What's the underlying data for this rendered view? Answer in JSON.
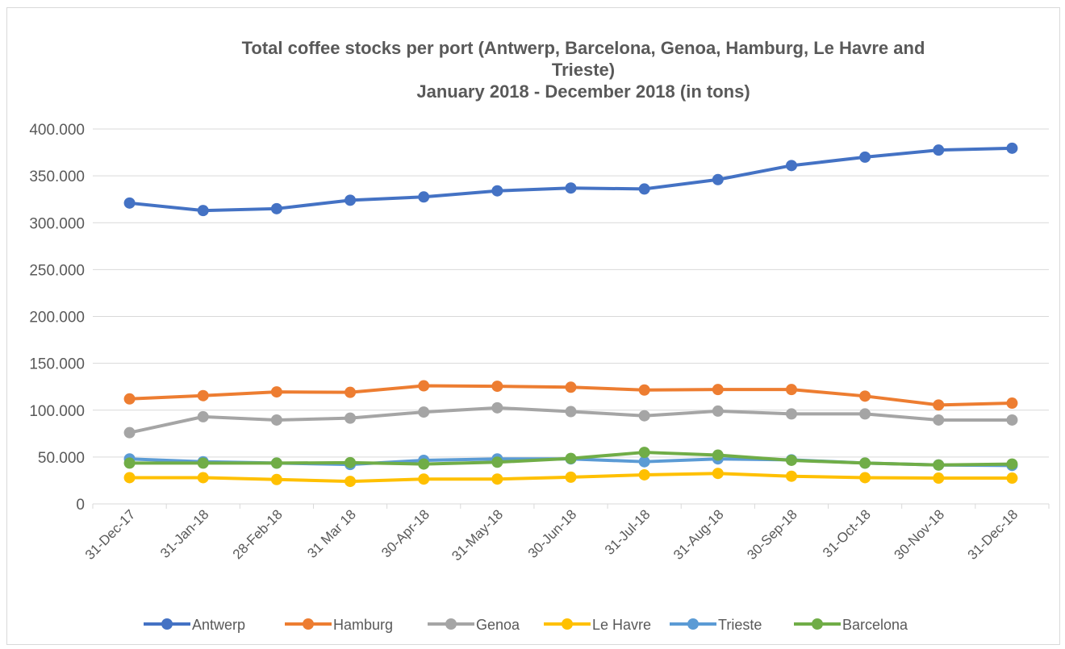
{
  "chart_data": {
    "type": "line",
    "title": [
      "Total coffee stocks per port (Antwerp, Barcelona, Genoa, Hamburg, Le Havre and",
      "Trieste)",
      "January 2018 - December 2018 (in tons)"
    ],
    "xlabel": "",
    "ylabel": "",
    "categories": [
      "31-Dec-17",
      "31-Jan-18",
      "28-Feb-18",
      "31 Mar 18",
      "30-Apr-18",
      "31-May-18",
      "30-Jun-18",
      "31-Jul-18",
      "31-Aug-18",
      "30-Sep-18",
      "31-Oct-18",
      "30-Nov-18",
      "31-Dec-18"
    ],
    "ylim": [
      0,
      400000
    ],
    "yticks": [
      0,
      50000,
      100000,
      150000,
      200000,
      250000,
      300000,
      350000,
      400000
    ],
    "ytick_labels": [
      "0",
      "50.000",
      "100.000",
      "150.000",
      "200.000",
      "250.000",
      "300.000",
      "350.000",
      "400.000"
    ],
    "grid": true,
    "legend_position": "bottom",
    "series": [
      {
        "name": "Antwerp",
        "color": "#4472c4",
        "values": [
          321000,
          313000,
          315000,
          324000,
          327500,
          334000,
          337000,
          336000,
          346000,
          361000,
          370000,
          377500,
          379500
        ]
      },
      {
        "name": "Hamburg",
        "color": "#ed7d31",
        "values": [
          112000,
          115500,
          119500,
          119000,
          126000,
          125500,
          124500,
          121500,
          122000,
          122000,
          115000,
          105500,
          107500
        ]
      },
      {
        "name": "Genoa",
        "color": "#a5a5a5",
        "values": [
          76000,
          93000,
          89500,
          91500,
          98000,
          102500,
          98500,
          94000,
          99000,
          96000,
          96000,
          89500,
          89500
        ]
      },
      {
        "name": "Le Havre",
        "color": "#ffc000",
        "values": [
          28000,
          28000,
          26000,
          24000,
          26500,
          26500,
          28500,
          31000,
          32500,
          29500,
          28000,
          27500,
          27500
        ]
      },
      {
        "name": "Trieste",
        "color": "#5b9bd5",
        "values": [
          48000,
          45000,
          43500,
          42000,
          46500,
          48000,
          48000,
          45000,
          48000,
          47000,
          43500,
          41500,
          41000
        ]
      },
      {
        "name": "Barcelona",
        "color": "#70ad47",
        "values": [
          43500,
          43500,
          43500,
          44000,
          42500,
          44500,
          48500,
          55000,
          52000,
          46500,
          43500,
          41500,
          42500
        ]
      }
    ]
  }
}
